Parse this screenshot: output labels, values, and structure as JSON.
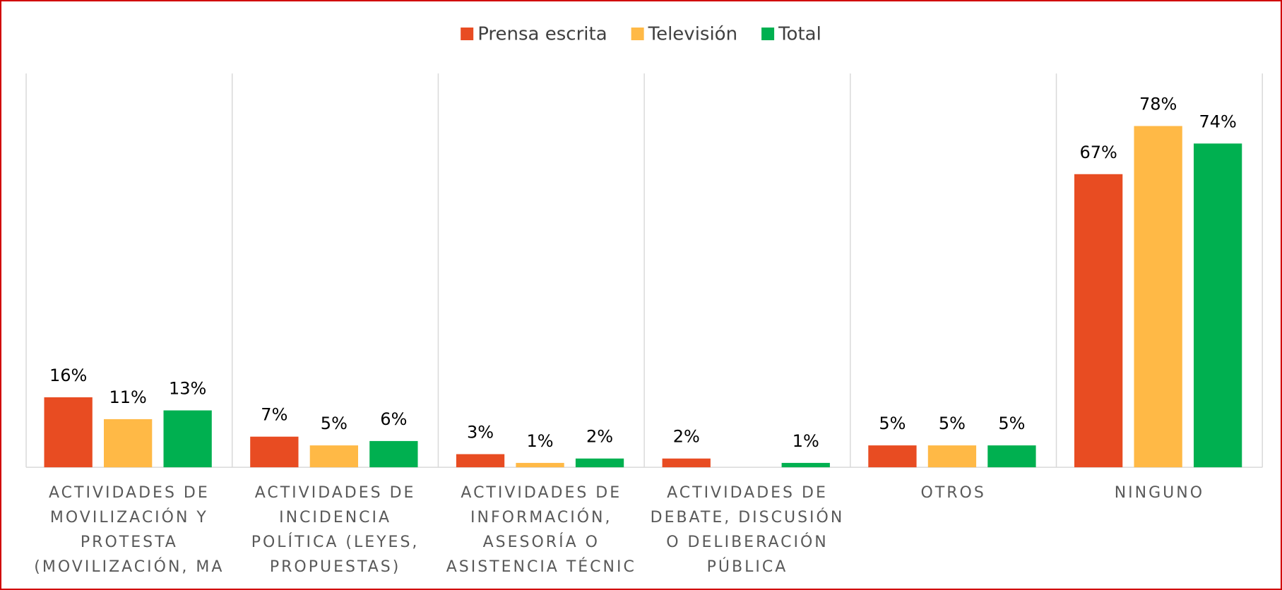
{
  "chart_data": {
    "type": "bar",
    "categories": [
      [
        "ACTIVIDADES DE",
        "MOVILIZACIÓN Y",
        "PROTESTA",
        "(MOVILIZACIÓN, MA"
      ],
      [
        "ACTIVIDADES DE",
        "INCIDENCIA",
        "POLÍTICA (LEYES,",
        "PROPUESTAS)"
      ],
      [
        "ACTIVIDADES DE",
        "INFORMACIÓN,",
        "ASESORÍA O",
        "ASISTENCIA TÉCNIC"
      ],
      [
        "ACTIVIDADES DE",
        "DEBATE, DISCUSIÓN",
        "O DELIBERACIÓN",
        "PÚBLICA"
      ],
      [
        "OTROS"
      ],
      [
        "NINGUNO"
      ]
    ],
    "series": [
      {
        "name": "Prensa escrita",
        "color": "#e84c22",
        "values": [
          16,
          7,
          3,
          2,
          5,
          67
        ],
        "value_labels": [
          "16%",
          "7%",
          "3%",
          "2%",
          "5%",
          "67%"
        ]
      },
      {
        "name": "Televisión",
        "color": "#ffb946",
        "values": [
          11,
          5,
          1,
          null,
          5,
          78
        ],
        "value_labels": [
          "11%",
          "5%",
          "1%",
          null,
          "5%",
          "78%"
        ]
      },
      {
        "name": "Total",
        "color": "#00b050",
        "values": [
          13,
          6,
          2,
          1,
          5,
          74
        ],
        "value_labels": [
          "13%",
          "6%",
          "2%",
          "1%",
          "5%",
          "74%"
        ]
      }
    ],
    "ylim": [
      0,
      90
    ],
    "grid": true,
    "legend": "top"
  }
}
